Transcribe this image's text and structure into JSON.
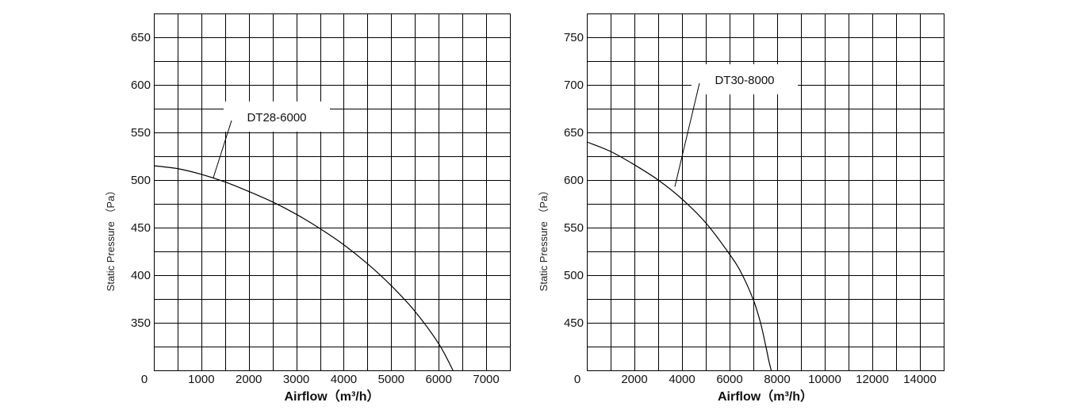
{
  "chart_data": [
    {
      "type": "line",
      "title": "",
      "xlabel": "Airflow（m³/h）",
      "ylabel": "Static Pressure （Pa）",
      "xlim": [
        0,
        7500
      ],
      "ylim": [
        300,
        675
      ],
      "x_ticks": [
        "1000",
        "2000",
        "3000",
        "4000",
        "5000",
        "6000",
        "7000"
      ],
      "x_tick_values": [
        1000,
        2000,
        3000,
        4000,
        5000,
        6000,
        7000
      ],
      "x_origin_label": "0",
      "y_ticks": [
        "350",
        "400",
        "450",
        "500",
        "550",
        "600",
        "650"
      ],
      "y_tick_values": [
        350,
        400,
        450,
        500,
        550,
        600,
        650
      ],
      "grid": true,
      "series": [
        {
          "name": "DT28-6000",
          "x": [
            0,
            500,
            1000,
            1500,
            2000,
            2500,
            3000,
            3500,
            4000,
            4500,
            5000,
            5500,
            6000,
            6300
          ],
          "y": [
            515,
            512,
            506,
            498,
            488,
            477,
            464,
            449,
            432,
            412,
            389,
            362,
            328,
            300
          ]
        }
      ],
      "annotation": {
        "text": "DT28-6000",
        "x": 1250,
        "y": 502
      }
    },
    {
      "type": "line",
      "title": "",
      "xlabel": "Airflow（m³/h）",
      "ylabel": "Static Pressure （Pa）",
      "xlim": [
        0,
        15000
      ],
      "ylim": [
        400,
        775
      ],
      "x_ticks": [
        "2000",
        "4000",
        "6000",
        "8000",
        "10000",
        "12000",
        "14000"
      ],
      "x_tick_values": [
        2000,
        4000,
        6000,
        8000,
        10000,
        12000,
        14000
      ],
      "x_origin_label": "0",
      "y_ticks": [
        "450",
        "500",
        "550",
        "600",
        "650",
        "700",
        "750"
      ],
      "y_tick_values": [
        450,
        500,
        550,
        600,
        650,
        700,
        750
      ],
      "grid": true,
      "series": [
        {
          "name": "DT30-8000",
          "x": [
            0,
            1000,
            2000,
            3000,
            4000,
            5000,
            6000,
            6500,
            7000,
            7300,
            7500,
            7650,
            7750
          ],
          "y": [
            640,
            630,
            616,
            600,
            580,
            555,
            522,
            502,
            474,
            450,
            428,
            410,
            400
          ]
        }
      ],
      "annotation": {
        "text": "DT30-8000",
        "x": 3700,
        "y": 593
      }
    }
  ]
}
